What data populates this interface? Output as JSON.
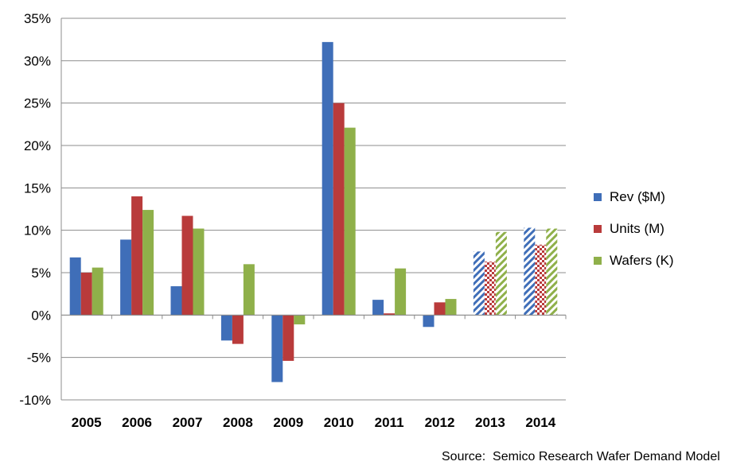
{
  "chart_data": {
    "type": "bar",
    "categories": [
      "2005",
      "2006",
      "2007",
      "2008",
      "2009",
      "2010",
      "2011",
      "2012",
      "2013",
      "2014"
    ],
    "series": [
      {
        "name": "Rev ($M)",
        "color": "#3f6eb8",
        "values": [
          6.8,
          8.9,
          3.4,
          -3.0,
          -7.9,
          32.2,
          1.8,
          -1.4,
          7.5,
          10.3
        ]
      },
      {
        "name": "Units (M)",
        "color": "#b93b3b",
        "values": [
          5.0,
          14.0,
          11.7,
          -3.4,
          -5.4,
          25.0,
          0.2,
          1.5,
          6.3,
          8.3
        ]
      },
      {
        "name": "Wafers (K)",
        "color": "#8fb04a",
        "values": [
          5.6,
          12.4,
          10.2,
          6.0,
          -1.1,
          22.1,
          5.5,
          1.9,
          9.8,
          10.2
        ]
      }
    ],
    "forecast_categories": [
      "2013",
      "2014"
    ],
    "yticks": [
      "35%",
      "30%",
      "25%",
      "20%",
      "15%",
      "10%",
      "5%",
      "0%",
      "-5%",
      "-10%"
    ],
    "ylim": [
      -10,
      35
    ],
    "grid": true,
    "legend_position": "right"
  },
  "source": "Source:  Semico Research Wafer Demand Model"
}
